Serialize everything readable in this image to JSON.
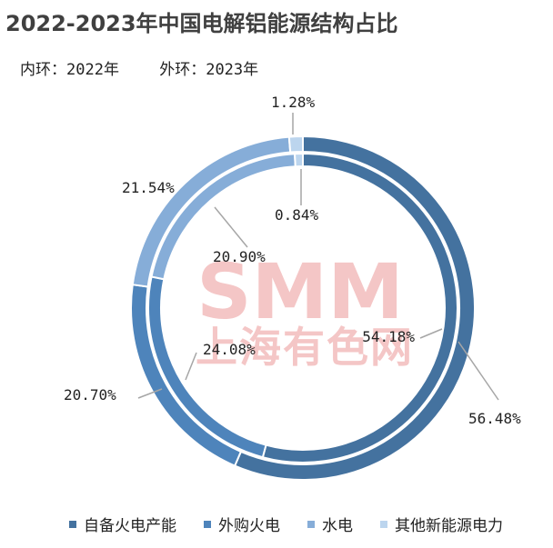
{
  "title": "2022-2023年中国电解铝能源结构占比",
  "ring_notes": {
    "inner": "内环：2022年",
    "outer": "外环：2023年"
  },
  "watermark": {
    "brand": "SMM",
    "cn": "上海有色网"
  },
  "chart_data": {
    "type": "pie",
    "variant": "double-donut",
    "categories": [
      "自备火电产能",
      "外购火电",
      "水电",
      "其他新能源电力"
    ],
    "colors": [
      "#44729f",
      "#4e84bb",
      "#86add8",
      "#bcd5ee"
    ],
    "series": [
      {
        "ring": "inner",
        "label_text": [
          "54.18%",
          "24.08%",
          "20.90%",
          "0.84%"
        ],
        "values": [
          54.18,
          24.08,
          20.9,
          0.84
        ]
      },
      {
        "ring": "outer",
        "label_text": [
          "56.48%",
          "20.70%",
          "21.54%",
          "1.28%"
        ],
        "values": [
          56.48,
          20.7,
          21.54,
          1.28
        ]
      }
    ],
    "legend_position": "bottom"
  }
}
